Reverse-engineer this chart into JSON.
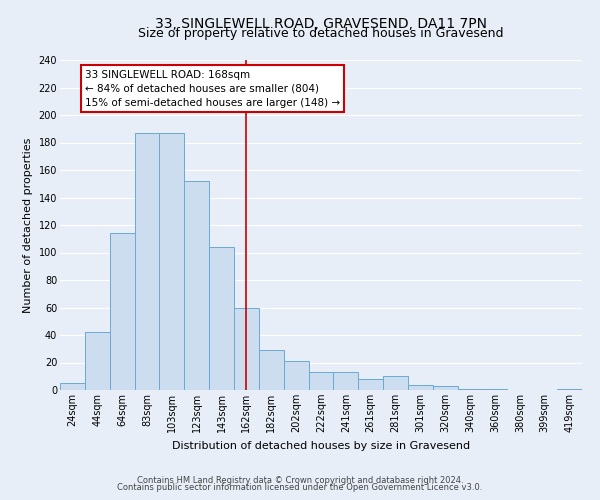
{
  "title": "33, SINGLEWELL ROAD, GRAVESEND, DA11 7PN",
  "subtitle": "Size of property relative to detached houses in Gravesend",
  "xlabel": "Distribution of detached houses by size in Gravesend",
  "ylabel": "Number of detached properties",
  "bar_labels": [
    "24sqm",
    "44sqm",
    "64sqm",
    "83sqm",
    "103sqm",
    "123sqm",
    "143sqm",
    "162sqm",
    "182sqm",
    "202sqm",
    "222sqm",
    "241sqm",
    "261sqm",
    "281sqm",
    "301sqm",
    "320sqm",
    "340sqm",
    "360sqm",
    "380sqm",
    "399sqm",
    "419sqm"
  ],
  "bar_values": [
    5,
    42,
    114,
    187,
    187,
    152,
    104,
    60,
    29,
    21,
    13,
    13,
    8,
    10,
    4,
    3,
    1,
    1,
    0,
    0,
    1
  ],
  "bar_color_fill": "#ccddf0",
  "bar_color_edge": "#6aaad4",
  "vline_x": 7,
  "vline_color": "#cc0000",
  "annotation_title": "33 SINGLEWELL ROAD: 168sqm",
  "annotation_line1": "← 84% of detached houses are smaller (804)",
  "annotation_line2": "15% of semi-detached houses are larger (148) →",
  "annotation_box_color": "#cc0000",
  "ylim": [
    0,
    240
  ],
  "yticks": [
    0,
    20,
    40,
    60,
    80,
    100,
    120,
    140,
    160,
    180,
    200,
    220,
    240
  ],
  "footer1": "Contains HM Land Registry data © Crown copyright and database right 2024.",
  "footer2": "Contains public sector information licensed under the Open Government Licence v3.0.",
  "bg_color": "#e8eef8",
  "grid_color": "#ffffff",
  "title_fontsize": 10,
  "subtitle_fontsize": 9,
  "ylabel_fontsize": 8,
  "xlabel_fontsize": 8,
  "tick_fontsize": 7,
  "annotation_fontsize": 7.5,
  "footer_fontsize": 6
}
